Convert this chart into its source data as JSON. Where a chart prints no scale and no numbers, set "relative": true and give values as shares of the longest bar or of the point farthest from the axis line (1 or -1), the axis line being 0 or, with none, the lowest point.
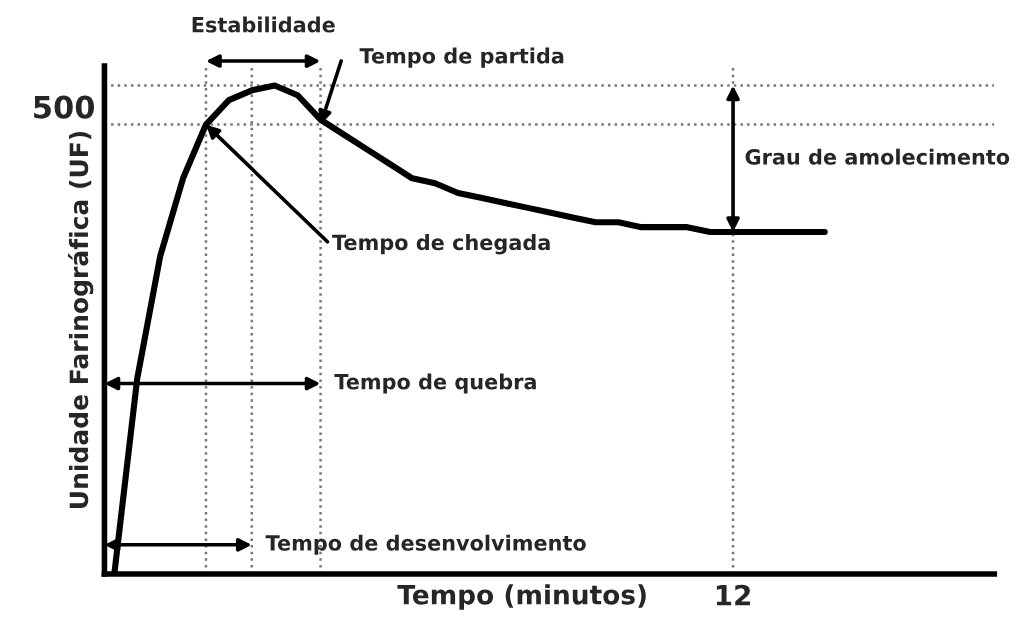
{
  "chart_data": {
    "type": "line",
    "relative": true,
    "xlabel": "Tempo (minutos)",
    "ylabel": "Unidade Farinográfica (UF)",
    "grid": true,
    "categories": [
      null,
      null,
      null,
      null,
      null,
      null,
      null,
      null,
      null,
      null,
      null,
      null,
      null,
      null,
      null,
      null,
      null,
      null,
      null,
      null,
      null,
      null,
      null,
      null,
      null,
      null,
      null,
      null,
      null,
      null,
      null,
      null
    ],
    "series": [
      {
        "color": "#000000",
        "values": [
          0,
          0.4,
          0.65,
          0.81,
          0.92,
          0.97,
          0.99,
          1.0,
          0.98,
          0.93,
          0.9,
          0.87,
          0.84,
          0.81,
          0.8,
          0.78,
          0.77,
          0.76,
          0.75,
          0.74,
          0.73,
          0.72,
          0.72,
          0.71,
          0.71,
          0.71,
          0.7,
          0.7,
          0.7,
          0.7,
          0.7,
          0.7
        ]
      }
    ],
    "ref_lines": [
      {
        "axis": "y",
        "value": 0.92,
        "color": "#777777",
        "line_style": "dotted"
      }
    ],
    "annotations": [
      "Estabilidade",
      "Tempo de partida",
      "Tempo de chegada",
      "Grau de amolecimento",
      "Tempo de quebra",
      "Tempo de desenvolvimento",
      "500",
      "12"
    ]
  }
}
